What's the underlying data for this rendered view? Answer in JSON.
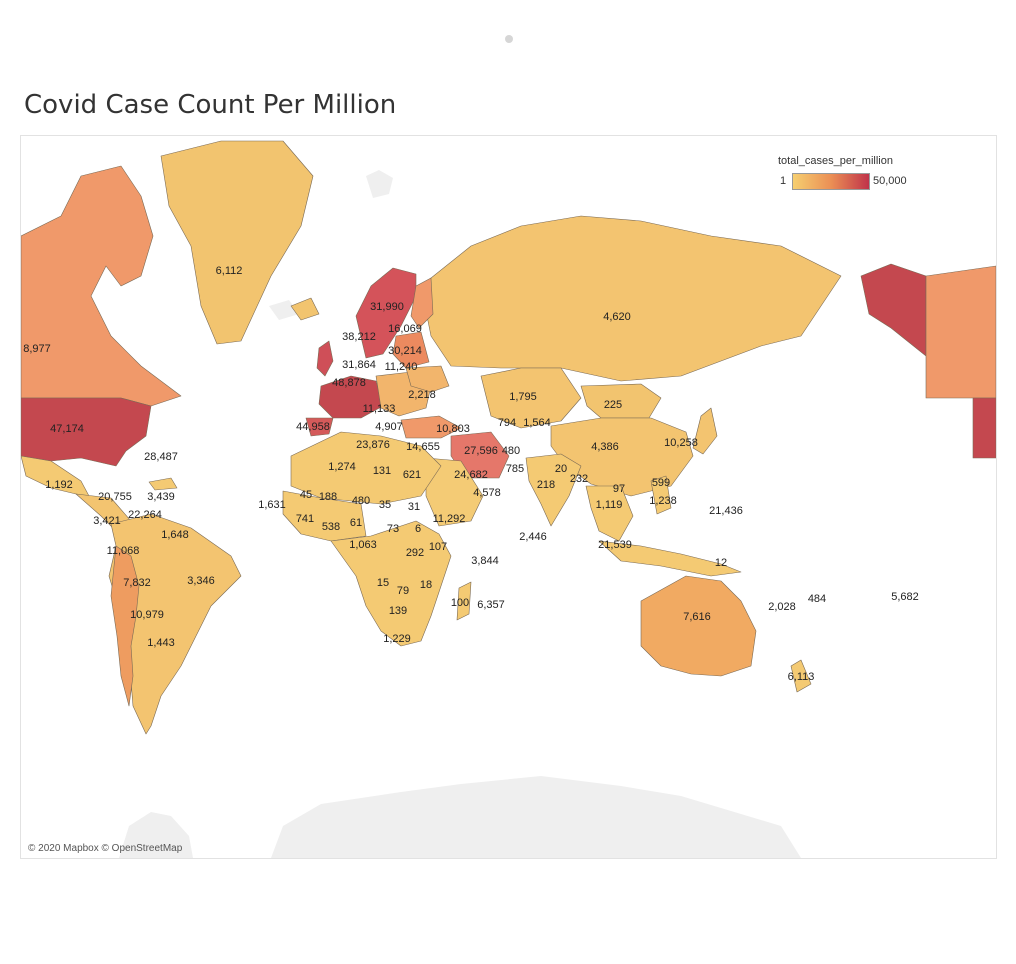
{
  "title": "Covid Case Count Per Million",
  "legend": {
    "field": "total_cases_per_million",
    "min_label": "1",
    "max_label": "50,000",
    "min_color": "#f6cf70",
    "mid_color": "#eb8f55",
    "max_color": "#c0334a"
  },
  "attribution": "© 2020 Mapbox © OpenStreetMap",
  "map_labels": [
    "6,112",
    "8,977",
    "47,174",
    "28,487",
    "1,192",
    "20,755",
    "3,439",
    "3,421",
    "22,264",
    "1,648",
    "11,068",
    "3,346",
    "7,832",
    "10,979",
    "1,443",
    "31,990",
    "38,212",
    "16,069",
    "30,214",
    "31,864",
    "11,240",
    "48,878",
    "2,218",
    "11,133",
    "44,958",
    "4,907",
    "10,803",
    "23,876",
    "14,655",
    "4,620",
    "1,795",
    "225",
    "794",
    "1,564",
    "480",
    "27,596",
    "785",
    "24,682",
    "4,578",
    "20",
    "232",
    "218",
    "4,386",
    "10,258",
    "97",
    "599",
    "1,238",
    "1,119",
    "21,436",
    "21,539",
    "2,446",
    "12",
    "1,274",
    "131",
    "621",
    "1,631",
    "45",
    "188",
    "480",
    "35",
    "31",
    "741",
    "538",
    "61",
    "73",
    "6",
    "1,063",
    "11,292",
    "107",
    "292",
    "3,844",
    "15",
    "79",
    "18",
    "139",
    "100",
    "6,357",
    "1,229",
    "7,616",
    "2,028",
    "484",
    "5,682",
    "6,113"
  ]
}
